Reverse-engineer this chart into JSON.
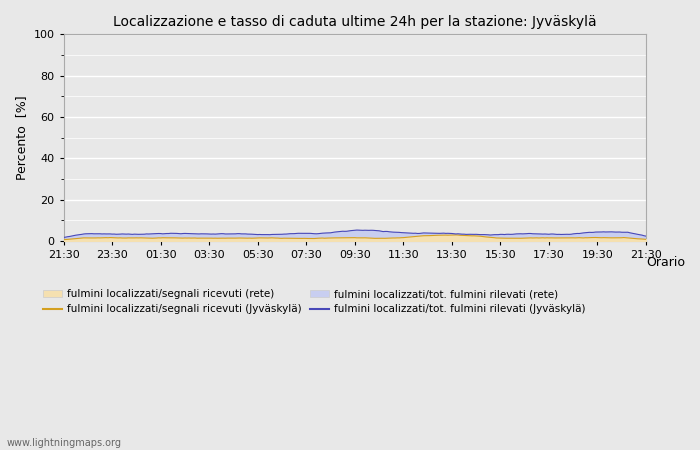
{
  "title": "Localizzazione e tasso di caduta ultime 24h per la stazione: Jyväskylä",
  "ylabel": "Percento  [%]",
  "xlabel": "Orario",
  "ylim": [
    0,
    100
  ],
  "yticks_major": [
    0,
    20,
    40,
    60,
    80,
    100
  ],
  "yticks_minor": [
    10,
    30,
    50,
    70,
    90
  ],
  "xtick_labels": [
    "21:30",
    "23:30",
    "01:30",
    "03:30",
    "05:30",
    "07:30",
    "09:30",
    "11:30",
    "13:30",
    "15:30",
    "17:30",
    "19:30",
    "21:30"
  ],
  "fill_color_rete": "#f5e0b0",
  "fill_color_station": "#c8cef0",
  "line_color_rete": "#d4a020",
  "line_color_station": "#4848b8",
  "background_color": "#e8e8e8",
  "plot_bg_color": "#e8e8e8",
  "grid_color": "#ffffff",
  "watermark": "www.lightningmaps.org",
  "legend_entries": [
    "fulmini localizzati/segnali ricevuti (rete)",
    "fulmini localizzati/segnali ricevuti (Jyväskylä)",
    "fulmini localizzati/tot. fulmini rilevati (rete)",
    "fulmini localizzati/tot. fulmini rilevati (Jyväskylä)"
  ],
  "n_points": 289
}
